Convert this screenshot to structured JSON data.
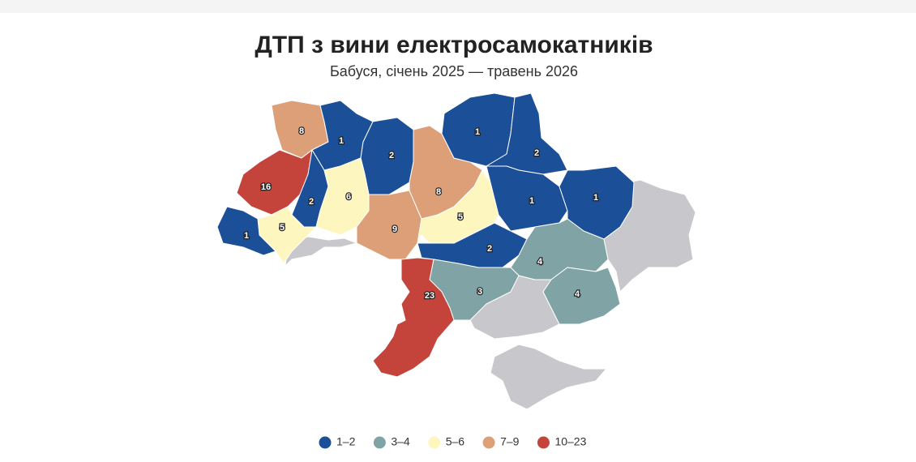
{
  "title": "ДТП з вини електросамокатників",
  "subtitle": "Бабуся, січень 2025 — травень 2026",
  "regions": [
    {
      "value": 8,
      "color": "#dd9f78"
    },
    {
      "value": 1,
      "color": "#1b4f97"
    },
    {
      "value": 2,
      "color": "#1b4f97"
    },
    {
      "value": 16,
      "color": "#c4443c"
    },
    {
      "value": 2,
      "color": "#1b4f97"
    },
    {
      "value": 6,
      "color": "#fdf7bf"
    },
    {
      "value": 5,
      "color": "#fdf7bf"
    },
    {
      "value": 1,
      "color": "#1b4f97"
    },
    {
      "value": 9,
      "color": "#dd9f78"
    },
    {
      "value": 8,
      "color": "#dd9f78"
    },
    {
      "value": 1,
      "color": "#1b4f97"
    },
    {
      "value": 2,
      "color": "#1b4f97"
    },
    {
      "value": 5,
      "color": "#fdf7bf"
    },
    {
      "value": 1,
      "color": "#1b4f97"
    },
    {
      "value": 1,
      "color": "#1b4f97"
    },
    {
      "value": 2,
      "color": "#1b4f97"
    },
    {
      "value": 4,
      "color": "#80a4a5"
    },
    {
      "value": 3,
      "color": "#80a4a5"
    },
    {
      "value": 23,
      "color": "#c4443c"
    },
    {
      "value": 4,
      "color": "#80a4a5"
    }
  ],
  "legend": [
    {
      "label": "1–2",
      "color": "#1b4f97"
    },
    {
      "label": "3–4",
      "color": "#80a4a5"
    },
    {
      "label": "5–6",
      "color": "#fdf7bf"
    },
    {
      "label": "7–9",
      "color": "#dd9f78"
    },
    {
      "label": "10–23",
      "color": "#c4443c"
    }
  ]
}
